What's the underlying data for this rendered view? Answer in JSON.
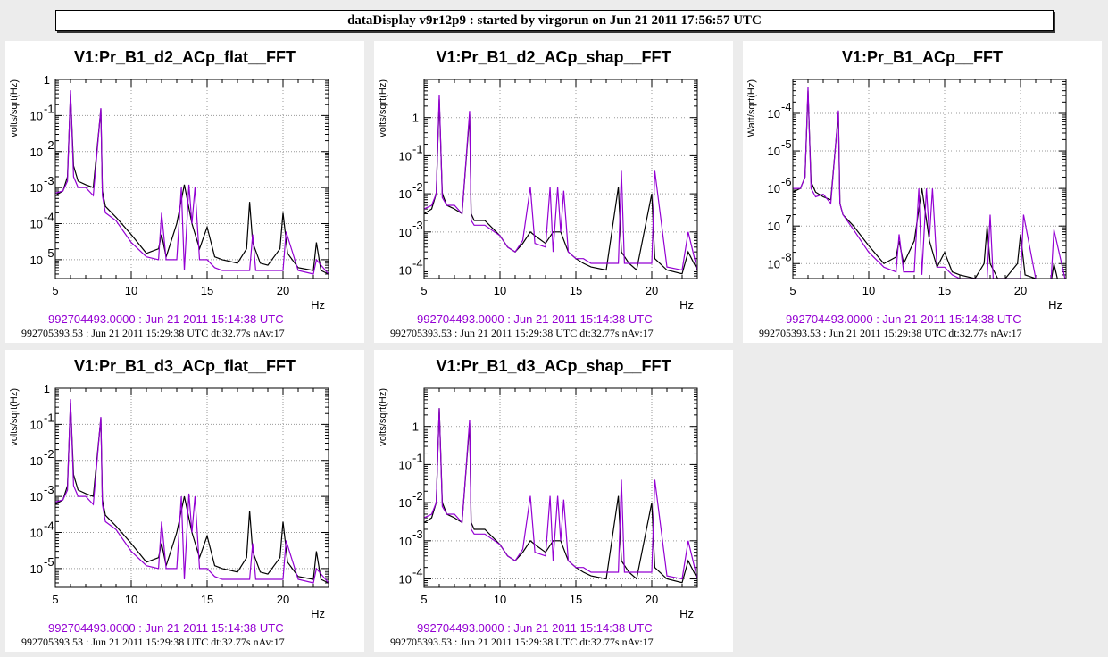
{
  "header": {
    "title": "dataDisplay v9r12p9 : started by virgorun on Jun 21 2011 17:56:57 UTC"
  },
  "colors": {
    "reference": "#9400d3",
    "current": "#000000"
  },
  "chart_data": [
    {
      "type": "line",
      "title": "V1:Pr_B1_d2_ACp_flat__FFT",
      "ylabel": "volts/sqrt(Hz)",
      "xlabel": "Hz",
      "xlim": [
        5,
        23
      ],
      "ylim": [
        3e-06,
        1
      ],
      "yscale": "log",
      "xticks": [
        5,
        10,
        15,
        20
      ],
      "yticks": [
        {
          "v": 1e-05,
          "l": "10"
        },
        {
          "v": 0.0001,
          "l": "10"
        },
        {
          "v": 0.001,
          "l": "10"
        },
        {
          "v": 0.01,
          "l": "10"
        },
        {
          "v": 0.1,
          "l": "10"
        },
        {
          "v": 1,
          "l": "1"
        }
      ],
      "ytick_exp": [
        "-5",
        "-4",
        "-3",
        "-2",
        "-1",
        ""
      ],
      "reference_time": "992704493.0000 : Jun 21 2011 15:14:38 UTC",
      "current_time": "992705393.53 : Jun 21 2011 15:29:38 UTC dt:32.77s nAv:17",
      "series": [
        {
          "role": "current",
          "x": [
            5,
            5.5,
            5.8,
            6,
            6.2,
            6.5,
            7,
            7.5,
            8,
            8.1,
            8.3,
            9,
            10,
            11,
            11.8,
            12,
            12.3,
            13,
            13.5,
            14,
            14.5,
            15,
            15.5,
            16,
            17,
            17.6,
            17.8,
            18,
            18.5,
            19,
            19.8,
            20,
            20.3,
            21,
            22,
            22.2,
            22.5,
            23
          ],
          "y": [
            0.0006,
            0.0008,
            0.002,
            0.4,
            0.004,
            0.0015,
            0.0012,
            0.001,
            0.15,
            0.0008,
            0.0003,
            0.00015,
            5e-05,
            1.5e-05,
            2e-05,
            5e-05,
            1.2e-05,
            0.0001,
            0.0012,
            0.0001,
            2e-05,
            8e-05,
            1.2e-05,
            1e-05,
            8e-06,
            2e-05,
            0.0004,
            3e-05,
            8e-06,
            7e-06,
            2e-05,
            0.0002,
            1.5e-05,
            6e-06,
            5e-06,
            3e-05,
            5e-06,
            4e-06
          ]
        },
        {
          "role": "reference",
          "x": [
            5,
            5.5,
            5.8,
            6,
            6.2,
            6.5,
            7,
            7.5,
            8,
            8.1,
            8.3,
            9,
            10,
            11,
            11.8,
            12,
            12.3,
            13,
            13.3,
            13.5,
            13.8,
            14,
            14.2,
            14.5,
            15,
            15.5,
            16,
            17,
            17.8,
            18,
            18.2,
            19,
            20,
            20.2,
            21,
            22,
            22.2,
            23
          ],
          "y": [
            0.0007,
            0.0008,
            0.0015,
            0.5,
            0.002,
            0.001,
            0.001,
            0.0006,
            0.16,
            0.0006,
            0.0002,
            0.00012,
            3e-05,
            1.2e-05,
            1e-05,
            0.0002,
            1e-05,
            1e-05,
            0.001,
            5e-06,
            0.0012,
            0.0001,
            0.001,
            1e-05,
            1e-05,
            6e-06,
            5e-06,
            5e-06,
            5e-06,
            5e-05,
            5e-06,
            5e-06,
            5e-06,
            6e-05,
            5e-06,
            4e-06,
            1e-05,
            4e-06
          ]
        }
      ]
    },
    {
      "type": "line",
      "title": "V1:Pr_B1_d2_ACp_shap__FFT",
      "ylabel": "volts/sqrt(Hz)",
      "xlabel": "Hz",
      "xlim": [
        5,
        23
      ],
      "ylim": [
        6e-05,
        10
      ],
      "yscale": "log",
      "xticks": [
        5,
        10,
        15,
        20
      ],
      "yticks": [
        {
          "v": 0.0001,
          "l": "10"
        },
        {
          "v": 0.001,
          "l": "10"
        },
        {
          "v": 0.01,
          "l": "10"
        },
        {
          "v": 0.1,
          "l": "10"
        },
        {
          "v": 1,
          "l": "1"
        }
      ],
      "ytick_exp": [
        "-4",
        "-3",
        "-2",
        "-1",
        ""
      ],
      "reference_time": "992704493.0000 : Jun 21 2011 15:14:38 UTC",
      "current_time": "992705393.53 : Jun 21 2011 15:29:38 UTC dt:32.77s nAv:17",
      "series": [
        {
          "role": "current",
          "x": [
            5,
            5.5,
            5.8,
            6,
            6.2,
            6.5,
            7,
            7.5,
            8,
            8.1,
            8.3,
            9,
            10,
            10.5,
            11,
            11.5,
            12,
            12.3,
            13,
            13.5,
            14,
            14.5,
            15,
            15.5,
            16,
            17,
            17.8,
            18,
            18.5,
            19,
            20,
            20.2,
            21,
            22,
            22.4,
            23
          ],
          "y": [
            0.003,
            0.004,
            0.01,
            3,
            0.01,
            0.005,
            0.004,
            0.003,
            1.2,
            0.003,
            0.002,
            0.002,
            0.0008,
            0.0004,
            0.0003,
            0.0005,
            0.001,
            0.0008,
            0.0005,
            0.001,
            0.001,
            0.0003,
            0.0002,
            0.00015,
            0.00012,
            0.0001,
            0.015,
            0.0003,
            0.00015,
            0.0001,
            0.01,
            0.0002,
            0.0001,
            8e-05,
            0.0003,
            0.0001
          ]
        },
        {
          "role": "reference",
          "x": [
            5,
            5.5,
            5.8,
            6,
            6.2,
            6.5,
            7,
            7.5,
            8,
            8.1,
            8.3,
            9,
            10,
            10.5,
            11,
            11.5,
            12,
            12.3,
            13,
            13.3,
            13.5,
            13.8,
            14,
            14.2,
            14.5,
            15,
            15.5,
            16,
            17,
            17.8,
            18,
            18.2,
            19,
            20,
            20.2,
            21,
            22,
            22.4,
            23
          ],
          "y": [
            0.004,
            0.005,
            0.01,
            4,
            0.008,
            0.005,
            0.005,
            0.003,
            1.5,
            0.002,
            0.0015,
            0.0015,
            0.0008,
            0.0004,
            0.0003,
            0.0006,
            0.015,
            0.0005,
            0.0004,
            0.015,
            0.0003,
            0.015,
            0.001,
            0.012,
            0.0003,
            0.0002,
            0.0002,
            0.00015,
            0.00015,
            0.00015,
            0.04,
            0.00015,
            0.00015,
            0.00015,
            0.04,
            0.00012,
            0.0001,
            0.001,
            0.0001
          ]
        }
      ]
    },
    {
      "type": "line",
      "title": "V1:Pr_B1_ACp__FFT",
      "ylabel": "Watt/sqrt(Hz)",
      "xlabel": "Hz",
      "xlim": [
        5,
        23
      ],
      "ylim": [
        4e-09,
        0.0008
      ],
      "yscale": "log",
      "xticks": [
        5,
        10,
        15,
        20
      ],
      "yticks": [
        {
          "v": 1e-08,
          "l": "10"
        },
        {
          "v": 1e-07,
          "l": "10"
        },
        {
          "v": 1e-06,
          "l": "10"
        },
        {
          "v": 1e-05,
          "l": "10"
        },
        {
          "v": 0.0001,
          "l": "10"
        }
      ],
      "ytick_exp": [
        "-8",
        "-7",
        "-6",
        "-5",
        "-4"
      ],
      "reference_time": "992704493.0000 : Jun 21 2011 15:14:38 UTC",
      "current_time": "992705393.53 : Jun 21 2011 15:29:38 UTC dt:32.77s nAv:17",
      "series": [
        {
          "role": "current",
          "x": [
            5,
            5.5,
            5.8,
            6,
            6.2,
            6.5,
            7,
            7.5,
            8,
            8.1,
            8.3,
            9,
            10,
            11,
            11.8,
            12,
            12.3,
            13,
            13.5,
            14,
            14.5,
            15,
            15.5,
            16,
            17,
            17.6,
            17.8,
            18,
            18.5,
            19,
            19.8,
            20,
            20.3,
            21,
            22,
            22.2,
            22.5,
            23
          ],
          "y": [
            8e-07,
            1e-06,
            2e-06,
            0.0004,
            1.5e-06,
            8e-07,
            6e-07,
            5e-07,
            0.0001,
            4e-07,
            2e-07,
            1e-07,
            3e-08,
            1e-08,
            1.5e-08,
            4e-08,
            1e-08,
            4e-08,
            1e-06,
            4e-08,
            8e-09,
            2e-08,
            6e-09,
            5e-09,
            4e-09,
            1e-08,
            1e-07,
            1e-08,
            4e-09,
            4e-09,
            1e-08,
            6e-08,
            5e-09,
            4e-09,
            3e-09,
            1e-08,
            3e-09,
            3e-09
          ]
        },
        {
          "role": "reference",
          "x": [
            5,
            5.5,
            5.8,
            6,
            6.2,
            6.5,
            7,
            7.5,
            8,
            8.1,
            8.3,
            9,
            10,
            11,
            11.8,
            12,
            12.3,
            13,
            13.3,
            13.5,
            13.8,
            14,
            14.2,
            14.5,
            15,
            15.5,
            16,
            17,
            17.8,
            18,
            18.2,
            19,
            20,
            20.2,
            21,
            22,
            22.2,
            23
          ],
          "y": [
            1e-06,
            1e-06,
            2e-06,
            0.0005,
            1e-06,
            6e-07,
            7e-07,
            4e-07,
            0.00012,
            4e-07,
            2e-07,
            8e-08,
            2e-08,
            8e-09,
            6e-09,
            6e-08,
            6e-09,
            6e-09,
            1e-06,
            5e-09,
            1e-06,
            5e-08,
            1e-06,
            8e-09,
            8e-09,
            5e-09,
            4e-09,
            4e-09,
            4e-09,
            2e-07,
            4e-09,
            4e-09,
            4e-09,
            2e-07,
            4e-09,
            3e-09,
            8e-08,
            3e-09
          ]
        }
      ]
    },
    {
      "type": "line",
      "title": "V1:Pr_B1_d3_ACp_flat__FFT",
      "ylabel": "volts/sqrt(Hz)",
      "xlabel": "Hz",
      "xlim": [
        5,
        23
      ],
      "ylim": [
        3e-06,
        1
      ],
      "yscale": "log",
      "xticks": [
        5,
        10,
        15,
        20
      ],
      "yticks": [
        {
          "v": 1e-05,
          "l": "10"
        },
        {
          "v": 0.0001,
          "l": "10"
        },
        {
          "v": 0.001,
          "l": "10"
        },
        {
          "v": 0.01,
          "l": "10"
        },
        {
          "v": 0.1,
          "l": "10"
        },
        {
          "v": 1,
          "l": "1"
        }
      ],
      "ytick_exp": [
        "-5",
        "-4",
        "-3",
        "-2",
        "-1",
        ""
      ],
      "reference_time": "992704493.0000 : Jun 21 2011 15:14:38 UTC",
      "current_time": "992705393.53 : Jun 21 2011 15:29:38 UTC dt:32.77s nAv:17",
      "series": [
        {
          "role": "current",
          "x": [
            5,
            5.5,
            5.8,
            6,
            6.2,
            6.5,
            7,
            7.5,
            8,
            8.1,
            8.3,
            9,
            10,
            11,
            11.8,
            12,
            12.3,
            13,
            13.5,
            14,
            14.5,
            15,
            15.5,
            16,
            17,
            17.6,
            17.8,
            18,
            18.5,
            19,
            19.8,
            20,
            20.3,
            21,
            22,
            22.2,
            22.5,
            23
          ],
          "y": [
            0.0006,
            0.0008,
            0.002,
            0.4,
            0.004,
            0.0015,
            0.0012,
            0.001,
            0.15,
            0.0008,
            0.0003,
            0.00015,
            5e-05,
            1.5e-05,
            2e-05,
            5e-05,
            1.2e-05,
            0.0001,
            0.001,
            0.0001,
            2e-05,
            8e-05,
            1.2e-05,
            1e-05,
            8e-06,
            2e-05,
            0.0004,
            3e-05,
            8e-06,
            7e-06,
            2e-05,
            0.0002,
            1.5e-05,
            6e-06,
            5e-06,
            3e-05,
            5e-06,
            4e-06
          ]
        },
        {
          "role": "reference",
          "x": [
            5,
            5.5,
            5.8,
            6,
            6.2,
            6.5,
            7,
            7.5,
            8,
            8.1,
            8.3,
            9,
            10,
            11,
            11.8,
            12,
            12.3,
            13,
            13.3,
            13.5,
            13.8,
            14,
            14.2,
            14.5,
            15,
            15.5,
            16,
            17,
            17.8,
            18,
            18.2,
            19,
            20,
            20.2,
            21,
            22,
            22.2,
            23
          ],
          "y": [
            0.0007,
            0.0008,
            0.0015,
            0.5,
            0.002,
            0.001,
            0.001,
            0.0006,
            0.16,
            0.0006,
            0.0002,
            0.00012,
            3e-05,
            1.2e-05,
            1e-05,
            0.0002,
            1e-05,
            1e-05,
            0.001,
            5e-06,
            0.0012,
            0.0001,
            0.001,
            1e-05,
            1e-05,
            6e-06,
            5e-06,
            5e-06,
            5e-06,
            5e-05,
            5e-06,
            5e-06,
            5e-06,
            6e-05,
            5e-06,
            4e-06,
            1e-05,
            4e-06
          ]
        }
      ]
    },
    {
      "type": "line",
      "title": "V1:Pr_B1_d3_ACp_shap__FFT",
      "ylabel": "volts/sqrt(Hz)",
      "xlabel": "Hz",
      "xlim": [
        5,
        23
      ],
      "ylim": [
        6e-05,
        10
      ],
      "yscale": "log",
      "xticks": [
        5,
        10,
        15,
        20
      ],
      "yticks": [
        {
          "v": 0.0001,
          "l": "10"
        },
        {
          "v": 0.001,
          "l": "10"
        },
        {
          "v": 0.01,
          "l": "10"
        },
        {
          "v": 0.1,
          "l": "10"
        },
        {
          "v": 1,
          "l": "1"
        }
      ],
      "ytick_exp": [
        "-4",
        "-3",
        "-2",
        "-1",
        ""
      ],
      "reference_time": "992704493.0000 : Jun 21 2011 15:14:38 UTC",
      "current_time": "992705393.53 : Jun 21 2011 15:29:38 UTC dt:32.77s nAv:17",
      "series": [
        {
          "role": "current",
          "x": [
            5,
            5.5,
            5.8,
            6,
            6.2,
            6.5,
            7,
            7.5,
            8,
            8.1,
            8.3,
            9,
            10,
            10.5,
            11,
            11.5,
            12,
            12.3,
            13,
            13.5,
            14,
            14.5,
            15,
            15.5,
            16,
            17,
            17.8,
            18,
            18.5,
            19,
            20,
            20.2,
            21,
            22,
            22.4,
            23
          ],
          "y": [
            0.003,
            0.004,
            0.01,
            3,
            0.01,
            0.005,
            0.004,
            0.003,
            1.2,
            0.003,
            0.002,
            0.002,
            0.0008,
            0.0004,
            0.0003,
            0.0005,
            0.001,
            0.0008,
            0.0005,
            0.001,
            0.001,
            0.0003,
            0.0002,
            0.00015,
            0.00012,
            0.0001,
            0.015,
            0.0003,
            0.00015,
            0.0001,
            0.01,
            0.0002,
            0.0001,
            8e-05,
            0.0003,
            0.0001
          ]
        },
        {
          "role": "reference",
          "x": [
            5,
            5.5,
            5.8,
            6,
            6.2,
            6.5,
            7,
            7.5,
            8,
            8.1,
            8.3,
            9,
            10,
            10.5,
            11,
            11.5,
            12,
            12.3,
            13,
            13.3,
            13.5,
            13.8,
            14,
            14.2,
            14.5,
            15,
            15.5,
            16,
            17,
            17.8,
            18,
            18.2,
            19,
            20,
            20.2,
            21,
            22,
            22.4,
            23
          ],
          "y": [
            0.004,
            0.005,
            0.01,
            3,
            0.008,
            0.005,
            0.005,
            0.003,
            1.5,
            0.002,
            0.0015,
            0.0015,
            0.0008,
            0.0004,
            0.0003,
            0.0006,
            0.015,
            0.0005,
            0.0004,
            0.015,
            0.0003,
            0.015,
            0.001,
            0.012,
            0.0003,
            0.0002,
            0.0002,
            0.00015,
            0.00015,
            0.00015,
            0.04,
            0.00015,
            0.00015,
            0.00015,
            0.04,
            0.00012,
            0.0001,
            0.001,
            0.0001
          ]
        }
      ]
    }
  ]
}
